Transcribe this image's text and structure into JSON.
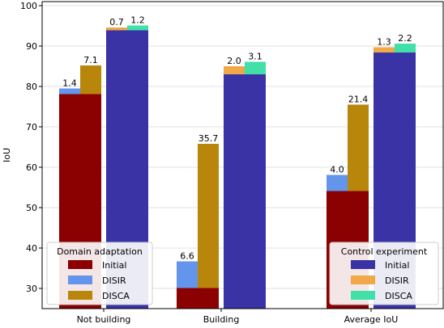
{
  "chart_data": {
    "type": "bar",
    "categories": [
      "Not building",
      "Building",
      "Average IoU"
    ],
    "ylabel": "IoU",
    "xlabel": "",
    "ylim": [
      25,
      101
    ],
    "yticks": [
      "30",
      "40",
      "50",
      "60",
      "70",
      "80",
      "90",
      "100"
    ],
    "grid": true,
    "groups": [
      {
        "title": "Domain adaptation",
        "legend_position": "lower-left",
        "initial": [
          78.1,
          30.1,
          54.1
        ],
        "increments": [
          {
            "name": "DISIR",
            "values": [
              1.4,
              6.6,
              4.0
            ],
            "labels": [
              "1.4",
              "6.6",
              "4.0"
            ]
          },
          {
            "name": "DISCA",
            "values": [
              7.1,
              35.7,
              21.4
            ],
            "labels": [
              "7.1",
              "35.7",
              "21.4"
            ]
          }
        ],
        "colors": {
          "Initial": "#8b0000",
          "DISIR": "#6495ed",
          "DISCA": "#b8860b"
        }
      },
      {
        "title": "Control experiment",
        "legend_position": "lower-right",
        "initial": [
          93.9,
          83.0,
          88.4
        ],
        "increments": [
          {
            "name": "DISIR",
            "values": [
              0.7,
              2.0,
              1.3
            ],
            "labels": [
              "0.7",
              "2.0",
              "1.3"
            ]
          },
          {
            "name": "DISCA",
            "values": [
              1.2,
              3.1,
              2.2
            ],
            "labels": [
              "1.2",
              "3.1",
              "2.2"
            ]
          }
        ],
        "colors": {
          "Initial": "#3a33a6",
          "DISIR": "#f0a848",
          "DISCA": "#40e0a8"
        }
      }
    ],
    "legend_entries": [
      "Initial",
      "DISIR",
      "DISCA"
    ]
  }
}
